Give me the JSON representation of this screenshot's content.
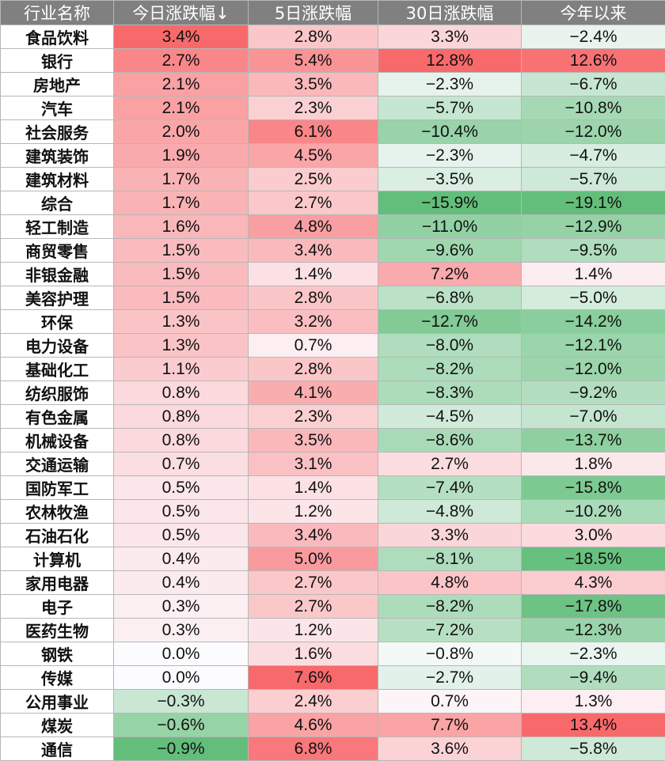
{
  "chart_data": {
    "type": "table",
    "columns": [
      "行业名称",
      "今日涨跌幅↓",
      "5日涨跌幅",
      "30日涨跌幅",
      "今年以来"
    ],
    "rows": [
      {
        "name": "食品饮料",
        "d1": 3.4,
        "d5": 2.8,
        "d30": 3.3,
        "ytd": -2.4
      },
      {
        "name": "银行",
        "d1": 2.7,
        "d5": 5.4,
        "d30": 12.8,
        "ytd": 12.6
      },
      {
        "name": "房地产",
        "d1": 2.1,
        "d5": 3.5,
        "d30": -2.3,
        "ytd": -6.7
      },
      {
        "name": "汽车",
        "d1": 2.1,
        "d5": 2.3,
        "d30": -5.7,
        "ytd": -10.8
      },
      {
        "name": "社会服务",
        "d1": 2.0,
        "d5": 6.1,
        "d30": -10.4,
        "ytd": -12.0
      },
      {
        "name": "建筑装饰",
        "d1": 1.9,
        "d5": 4.5,
        "d30": -2.3,
        "ytd": -4.7
      },
      {
        "name": "建筑材料",
        "d1": 1.7,
        "d5": 2.5,
        "d30": -3.5,
        "ytd": -5.7
      },
      {
        "name": "综合",
        "d1": 1.7,
        "d5": 2.7,
        "d30": -15.9,
        "ytd": -19.1
      },
      {
        "name": "轻工制造",
        "d1": 1.6,
        "d5": 4.8,
        "d30": -11.0,
        "ytd": -12.9
      },
      {
        "name": "商贸零售",
        "d1": 1.5,
        "d5": 3.4,
        "d30": -9.6,
        "ytd": -9.5
      },
      {
        "name": "非银金融",
        "d1": 1.5,
        "d5": 1.4,
        "d30": 7.2,
        "ytd": 1.4
      },
      {
        "name": "美容护理",
        "d1": 1.5,
        "d5": 2.8,
        "d30": -6.8,
        "ytd": -5.0
      },
      {
        "name": "环保",
        "d1": 1.3,
        "d5": 3.2,
        "d30": -12.7,
        "ytd": -14.2
      },
      {
        "name": "电力设备",
        "d1": 1.3,
        "d5": 0.7,
        "d30": -8.0,
        "ytd": -12.1
      },
      {
        "name": "基础化工",
        "d1": 1.1,
        "d5": 2.8,
        "d30": -8.2,
        "ytd": -12.0
      },
      {
        "name": "纺织服饰",
        "d1": 0.8,
        "d5": 4.1,
        "d30": -8.3,
        "ytd": -9.2
      },
      {
        "name": "有色金属",
        "d1": 0.8,
        "d5": 2.3,
        "d30": -4.5,
        "ytd": -7.0
      },
      {
        "name": "机械设备",
        "d1": 0.8,
        "d5": 3.5,
        "d30": -8.6,
        "ytd": -13.7
      },
      {
        "name": "交通运输",
        "d1": 0.7,
        "d5": 3.1,
        "d30": 2.7,
        "ytd": 1.8
      },
      {
        "name": "国防军工",
        "d1": 0.5,
        "d5": 1.4,
        "d30": -7.4,
        "ytd": -15.8
      },
      {
        "name": "农林牧渔",
        "d1": 0.5,
        "d5": 1.2,
        "d30": -4.8,
        "ytd": -10.2
      },
      {
        "name": "石油石化",
        "d1": 0.5,
        "d5": 3.4,
        "d30": 3.3,
        "ytd": 3.0
      },
      {
        "name": "计算机",
        "d1": 0.4,
        "d5": 5.0,
        "d30": -8.1,
        "ytd": -18.5
      },
      {
        "name": "家用电器",
        "d1": 0.4,
        "d5": 2.7,
        "d30": 4.8,
        "ytd": 4.3
      },
      {
        "name": "电子",
        "d1": 0.3,
        "d5": 2.7,
        "d30": -8.2,
        "ytd": -17.8
      },
      {
        "name": "医药生物",
        "d1": 0.3,
        "d5": 1.2,
        "d30": -7.2,
        "ytd": -12.3
      },
      {
        "name": "钢铁",
        "d1": 0.0,
        "d5": 1.6,
        "d30": -0.8,
        "ytd": -2.3
      },
      {
        "name": "传媒",
        "d1": 0.0,
        "d5": 7.6,
        "d30": -2.7,
        "ytd": -9.4
      },
      {
        "name": "公用事业",
        "d1": -0.3,
        "d5": 2.4,
        "d30": 0.7,
        "ytd": 1.3
      },
      {
        "name": "煤炭",
        "d1": -0.6,
        "d5": 4.6,
        "d30": 7.7,
        "ytd": 13.4
      },
      {
        "name": "通信",
        "d1": -0.9,
        "d5": 6.8,
        "d30": 3.6,
        "ytd": -5.8
      }
    ]
  },
  "colors": {
    "header_bg": "#808080",
    "header_text": "#ffffff",
    "positive_max": "#f8696b",
    "negative_max": "#63be7b",
    "neutral": "#fcfcff",
    "border": "#b7b7b7"
  }
}
